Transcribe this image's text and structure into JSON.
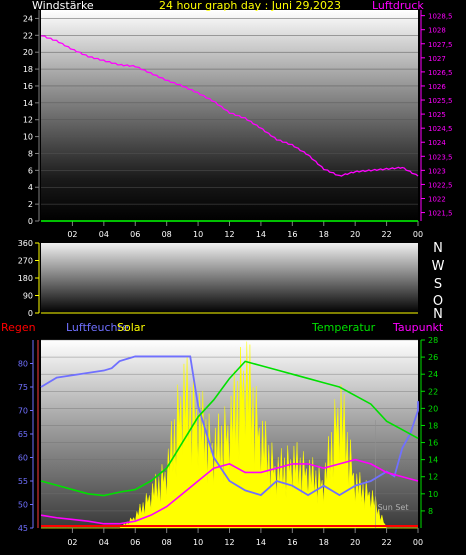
{
  "header": {
    "left_label": "Windstärke",
    "title": "24 hour graph day : Juni 29,2023",
    "right_label": "Luftdruck"
  },
  "colors": {
    "background": "#000000",
    "axis": "#808080",
    "pressure": "#ff00ff",
    "wind": "#00ff00",
    "title": "#ffff00",
    "humidity": "#7070ff",
    "solar": "#ffff00",
    "temperature": "#00e000",
    "dewpoint": "#ff00ff",
    "rain": "#ff0000",
    "rain_axis": "#ff3b3b",
    "wind_dir_axis": "#ffff00",
    "direction_letters": "#ffffff",
    "sunset_label": "#b0b0b0"
  },
  "direction_labels": [
    "N",
    "W",
    "S",
    "O",
    "N"
  ],
  "bottom_header": {
    "rain": "Regen",
    "humidity": "Luftfeuchte",
    "solar": "Solar",
    "temperature": "Temperatur",
    "dewpoint": "Taupunkt"
  },
  "x_ticks": [
    "02",
    "04",
    "06",
    "08",
    "10",
    "12",
    "14",
    "16",
    "18",
    "20",
    "22",
    "00"
  ],
  "chart_data": [
    {
      "type": "line",
      "name": "wind-pressure",
      "title": "24 hour graph day : Juni 29,2023",
      "ylabel_left": "Windstärke",
      "ylabel_right": "Luftdruck",
      "ylim_left": [
        0,
        25
      ],
      "yticks_left": [
        0,
        2,
        4,
        6,
        8,
        10,
        12,
        14,
        16,
        18,
        20,
        22,
        24
      ],
      "ylim_right": [
        1021.2,
        1028.7
      ],
      "yticks_right": [
        "1021,5",
        "1022",
        "1022,5",
        "1023",
        "1023,5",
        "1024",
        "1024,5",
        "1025",
        "1025,5",
        "1026",
        "1026,5",
        "1027",
        "1027,5",
        "1028",
        "1028,5"
      ],
      "x_hours": [
        0,
        1,
        2,
        3,
        4,
        5,
        6,
        7,
        8,
        9,
        10,
        11,
        12,
        13,
        14,
        15,
        16,
        17,
        18,
        19,
        20,
        21,
        22,
        23,
        24
      ],
      "pressure": [
        1027.8,
        1027.6,
        1027.3,
        1027.05,
        1026.9,
        1026.75,
        1026.7,
        1026.45,
        1026.2,
        1026.0,
        1025.75,
        1025.45,
        1025.05,
        1024.85,
        1024.5,
        1024.1,
        1023.9,
        1023.55,
        1023.05,
        1022.8,
        1022.95,
        1023.0,
        1023.05,
        1023.1,
        1022.8
      ],
      "wind": [
        0,
        0,
        0,
        0,
        0,
        0,
        0,
        0,
        0,
        0,
        0,
        0,
        0,
        0,
        0,
        0,
        0,
        0,
        0,
        0,
        0,
        0,
        0,
        0,
        0
      ]
    },
    {
      "type": "line",
      "name": "wind-direction",
      "ylim": [
        0,
        360
      ],
      "yticks": [
        0,
        90,
        180,
        270,
        360
      ],
      "values": []
    },
    {
      "type": "line",
      "name": "climate",
      "ylim_humidity": [
        45,
        85
      ],
      "yticks_humidity": [
        45,
        50,
        55,
        60,
        65,
        70,
        75,
        80
      ],
      "ylim_temperature": [
        6,
        28
      ],
      "yticks_temperature": [
        8,
        10,
        12,
        14,
        16,
        18,
        20,
        22,
        24,
        26,
        28
      ],
      "x_hours": [
        0,
        1,
        2,
        3,
        4,
        5,
        6,
        7,
        8,
        9,
        10,
        11,
        12,
        13,
        14,
        15,
        16,
        17,
        18,
        19,
        20,
        21,
        22,
        23,
        24
      ],
      "humidity": [
        75,
        77,
        77.5,
        78,
        78.5,
        79,
        80.5,
        81.5,
        81.5,
        81.5,
        81.5,
        81.5,
        71,
        60,
        55,
        53,
        52,
        55,
        54,
        52,
        54,
        52,
        54,
        55,
        57,
        56,
        62,
        65,
        70,
        72
      ],
      "humidity_x": [
        0,
        1,
        2,
        3,
        4,
        4.5,
        5,
        6,
        7,
        8,
        9,
        9.5,
        10,
        11,
        12,
        13,
        14,
        15,
        16,
        17,
        18,
        19,
        20,
        21,
        22,
        22.5,
        23,
        23.5,
        24,
        24
      ],
      "temperature": [
        11.5,
        11,
        10.5,
        10,
        9.8,
        10.2,
        10.5,
        11.5,
        13,
        16,
        19,
        21,
        23.5,
        25.5,
        25,
        24.5,
        24,
        23.5,
        23,
        22.5,
        21.5,
        20.5,
        18.5,
        17.5,
        16.5
      ],
      "dewpoint": [
        7.5,
        7.2,
        7,
        6.8,
        6.5,
        6.5,
        6.8,
        7.5,
        8.5,
        10,
        11.5,
        13,
        13.5,
        12.5,
        12.5,
        13,
        13.5,
        13.5,
        13,
        13.5,
        14,
        13.5,
        12.5,
        12,
        11.5
      ],
      "solar_relative": [
        0,
        0,
        0,
        0,
        0,
        0,
        0.05,
        0.15,
        0.25,
        0.6,
        0.5,
        0.35,
        0.45,
        0.7,
        0.4,
        0.25,
        0.3,
        0.25,
        0.2,
        0.55,
        0.2,
        0.15,
        0,
        0,
        0
      ],
      "rain": [
        0,
        0,
        0,
        0,
        0,
        0,
        0,
        0,
        0,
        0,
        0,
        0,
        0,
        0,
        0,
        0,
        0,
        0,
        0,
        0,
        0,
        0,
        0,
        0,
        0
      ],
      "sunset_hour": 21.3,
      "sunset_label": "Sun Set"
    }
  ]
}
